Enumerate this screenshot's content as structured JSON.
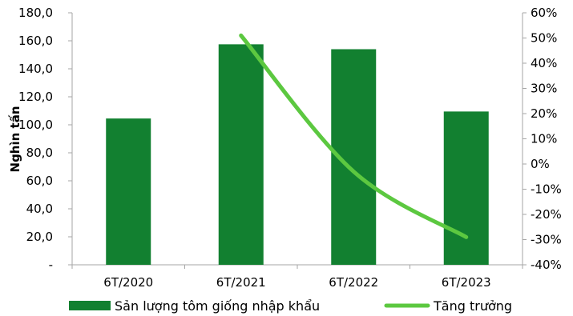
{
  "chart_data": {
    "type": "bar",
    "categories": [
      "6T/2020",
      "6T/2021",
      "6T/2022",
      "6T/2023"
    ],
    "series": [
      {
        "name": "Sản lượng tôm giống nhập khẩu",
        "type": "bar",
        "axis": "left",
        "color": "#128030",
        "values": [
          104.5,
          157.5,
          154.0,
          109.5
        ]
      },
      {
        "name": "Tăng trưởng",
        "type": "line",
        "axis": "right",
        "color": "#5cc840",
        "values": [
          null,
          51,
          -3,
          -29
        ]
      }
    ],
    "ylabel": "Nghìn tấn",
    "y_left": {
      "ylim": [
        0,
        180
      ],
      "ticks": [
        0,
        20,
        40,
        60,
        80,
        100,
        120,
        140,
        160,
        180
      ],
      "tick_labels": [
        "-",
        "20,0",
        "40,0",
        "60,0",
        "80,0",
        "100,0",
        "120,0",
        "140,0",
        "160,0",
        "180,0"
      ]
    },
    "y_right": {
      "ylim": [
        -40,
        60
      ],
      "ticks": [
        -40,
        -30,
        -20,
        -10,
        0,
        10,
        20,
        30,
        40,
        50,
        60
      ],
      "tick_labels": [
        "-40%",
        "-30%",
        "-20%",
        "-10%",
        "0%",
        "10%",
        "20%",
        "30%",
        "40%",
        "50%",
        "60%"
      ]
    },
    "legend_position": "bottom",
    "grid": false
  }
}
